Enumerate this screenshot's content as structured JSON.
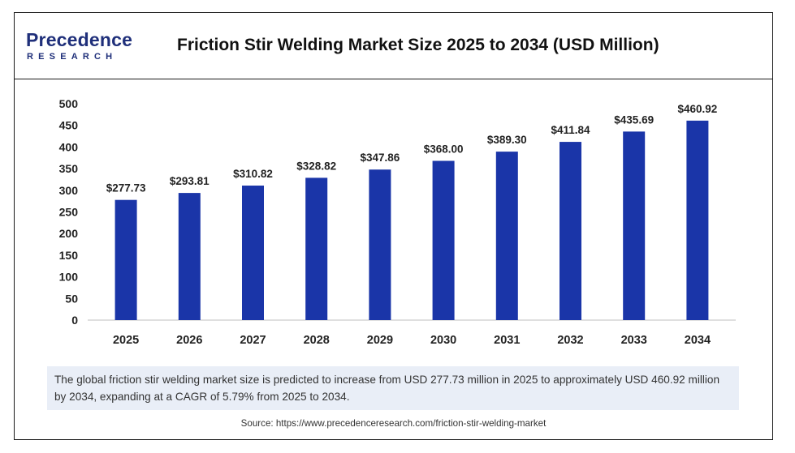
{
  "header": {
    "logo_main": "Precedence",
    "logo_sub": "RESEARCH",
    "title": "Friction Stir Welding Market Size 2025 to 2034 (USD Million)"
  },
  "colors": {
    "bar": "#1a35a8",
    "axis": "#bfbfbf",
    "brand": "#1f2f7a",
    "note_bg": "#e9eef7"
  },
  "chart_data": {
    "type": "bar",
    "title": "Friction Stir Welding Market Size 2025 to 2034 (USD Million)",
    "xlabel": "",
    "ylabel": "",
    "categories": [
      "2025",
      "2026",
      "2027",
      "2028",
      "2029",
      "2030",
      "2031",
      "2032",
      "2033",
      "2034"
    ],
    "values": [
      277.73,
      293.81,
      310.82,
      328.82,
      347.86,
      368.0,
      389.3,
      411.84,
      435.69,
      460.92
    ],
    "data_labels": [
      "$277.73",
      "$293.81",
      "$310.82",
      "$328.82",
      "$347.86",
      "$368.00",
      "$389.30",
      "$411.84",
      "$435.69",
      "$460.92"
    ],
    "ylim": [
      0,
      500
    ],
    "yticks": [
      0,
      50,
      100,
      150,
      200,
      250,
      300,
      350,
      400,
      450,
      500
    ],
    "grid": false,
    "legend": "none"
  },
  "note": "The global friction stir welding market size is predicted to increase from USD 277.73 million in 2025 to approximately USD 460.92 million by 2034, expanding at a CAGR of 5.79% from 2025 to 2034.",
  "source": "Source: https://www.precedenceresearch.com/friction-stir-welding-market"
}
